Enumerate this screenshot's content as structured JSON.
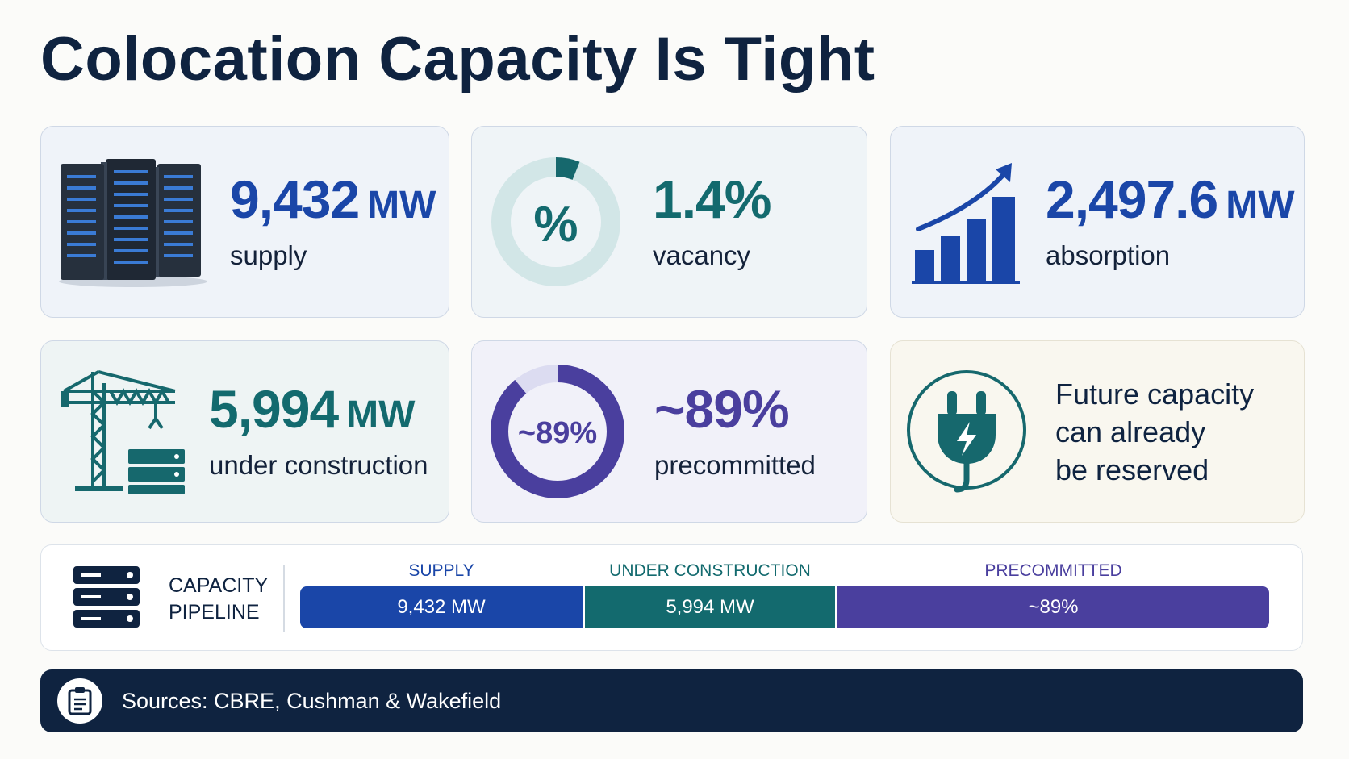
{
  "title": "Colocation Capacity Is Tight",
  "cards": {
    "supply": {
      "value": "9,432",
      "unit": "MW",
      "label": "supply"
    },
    "vacancy": {
      "value": "1.4%",
      "label": "vacancy",
      "icon_text": "%",
      "gauge_fraction": 0.06
    },
    "absorption": {
      "value": "2,497.6",
      "unit": "MW",
      "label": "absorption"
    },
    "construction": {
      "value": "5,994",
      "unit": "MW",
      "label": "under construction"
    },
    "precommitted": {
      "value": "~89%",
      "label": "precommitted",
      "ring_text": "~89%",
      "ring_fraction": 0.89
    },
    "future": {
      "lines": [
        "Future capacity",
        "can already",
        "be reserved"
      ]
    }
  },
  "pipeline": {
    "label_lines": [
      "CAPACITY",
      "PIPELINE"
    ],
    "segments": [
      {
        "name": "SUPPLY",
        "value": "9,432 MW",
        "color": "#1a46a8"
      },
      {
        "name": "UNDER CONSTRUCTION",
        "value": "5,994 MW",
        "color": "#136a6e"
      },
      {
        "name": "PRECOMMITTED",
        "value": "~89%",
        "color": "#4a3f9e"
      }
    ]
  },
  "footer": {
    "sources": "Sources: CBRE, Cushman & Wakefield"
  },
  "colors": {
    "navy": "#0f2340",
    "blue": "#1a46a8",
    "teal": "#136a6e",
    "purple": "#4a3f9e"
  },
  "icons": [
    "server-rack-icon",
    "percent-gauge-icon",
    "growth-chart-icon",
    "construction-crane-icon",
    "progress-ring-icon",
    "power-plug-icon",
    "server-stack-icon",
    "clipboard-icon"
  ]
}
